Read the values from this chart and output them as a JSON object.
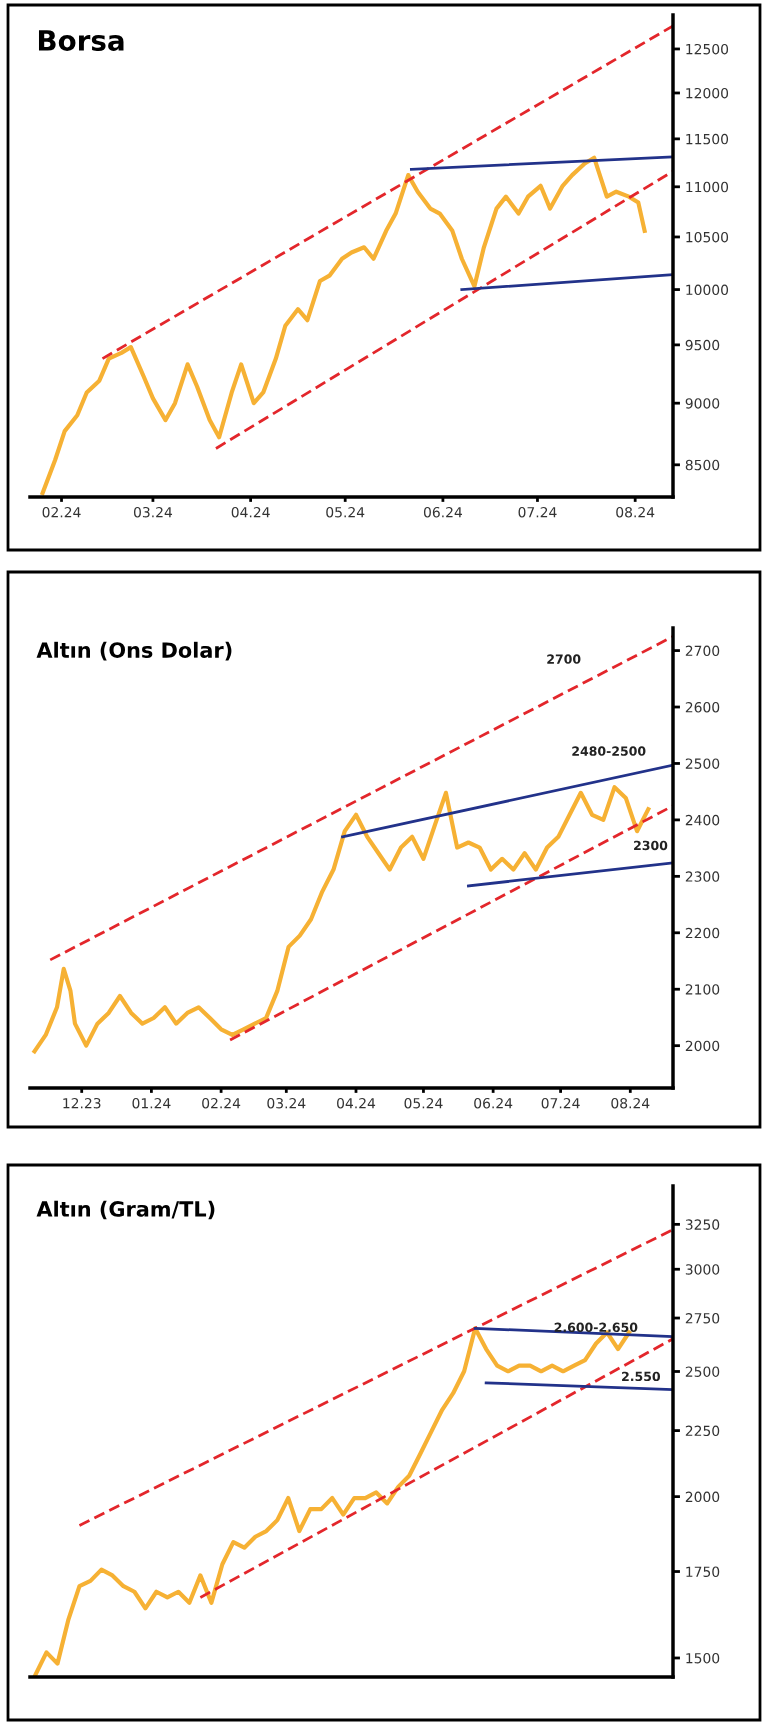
{
  "chart_data": [
    {
      "type": "line",
      "title": "Borsa",
      "log": true,
      "xlim": [
        "2024-01-22",
        "2024-08-13"
      ],
      "ylim": [
        8250,
        12900
      ],
      "xticks": [
        {
          "value": "2024-02-01",
          "label": "02.24"
        },
        {
          "value": "2024-03-01",
          "label": "03.24"
        },
        {
          "value": "2024-04-01",
          "label": "04.24"
        },
        {
          "value": "2024-05-01",
          "label": "05.24"
        },
        {
          "value": "2024-06-01",
          "label": "06.24"
        },
        {
          "value": "2024-07-01",
          "label": "07.24"
        },
        {
          "value": "2024-08-01",
          "label": "08.24"
        }
      ],
      "yticks": [
        8500,
        9000,
        9500,
        10000,
        10500,
        11000,
        11500,
        12000,
        12500
      ],
      "series": [
        {
          "color": "#f6b134",
          "x": [
            "2024-01-26",
            "2024-01-30",
            "2024-02-02",
            "2024-02-06",
            "2024-02-09",
            "2024-02-13",
            "2024-02-16",
            "2024-02-20",
            "2024-02-23",
            "2024-02-27",
            "2024-03-01",
            "2024-03-05",
            "2024-03-08",
            "2024-03-12",
            "2024-03-15",
            "2024-03-19",
            "2024-03-22",
            "2024-03-26",
            "2024-03-29",
            "2024-04-02",
            "2024-04-05",
            "2024-04-09",
            "2024-04-12",
            "2024-04-16",
            "2024-04-19",
            "2024-04-23",
            "2024-04-26",
            "2024-04-30",
            "2024-05-03",
            "2024-05-07",
            "2024-05-10",
            "2024-05-14",
            "2024-05-17",
            "2024-05-21",
            "2024-05-24",
            "2024-05-28",
            "2024-05-31",
            "2024-06-04",
            "2024-06-07",
            "2024-06-11",
            "2024-06-14",
            "2024-06-18",
            "2024-06-21",
            "2024-06-25",
            "2024-06-28",
            "2024-07-02",
            "2024-07-05",
            "2024-07-09",
            "2024-07-12",
            "2024-07-16",
            "2024-07-19",
            "2024-07-23",
            "2024-07-26",
            "2024-07-30",
            "2024-08-02",
            "2024-08-04"
          ],
          "values": [
            8280,
            8540,
            8770,
            8900,
            9090,
            9190,
            9380,
            9430,
            9480,
            9230,
            9040,
            8860,
            9000,
            9330,
            9140,
            8860,
            8720,
            9090,
            9330,
            9000,
            9090,
            9380,
            9670,
            9820,
            9720,
            10080,
            10130,
            10290,
            10350,
            10400,
            10290,
            10560,
            10730,
            11120,
            10950,
            10780,
            10730,
            10560,
            10290,
            10030,
            10400,
            10780,
            10900,
            10730,
            10900,
            11010,
            10780,
            11010,
            11120,
            11240,
            11300,
            10900,
            10950,
            10900,
            10840,
            10560
          ]
        },
        {
          "color": "#e3262b",
          "line_style": "dashed",
          "x": [
            "2024-02-14",
            "2024-08-13"
          ],
          "values": [
            9380,
            12770
          ]
        },
        {
          "color": "#e3262b",
          "line_style": "dashed",
          "x": [
            "2024-03-21",
            "2024-08-13"
          ],
          "values": [
            8630,
            11160
          ]
        },
        {
          "color": "#22328a",
          "line_style": "solid",
          "x": [
            "2024-05-22",
            "2024-08-13"
          ],
          "values": [
            11180,
            11310
          ]
        },
        {
          "color": "#22328a",
          "line_style": "solid",
          "x": [
            "2024-06-07",
            "2024-08-13"
          ],
          "values": [
            10000,
            10140
          ]
        }
      ]
    },
    {
      "type": "line",
      "title": "Altın (Ons Dolar)",
      "xlim": [
        "2023-11-08",
        "2024-08-20"
      ],
      "ylim": [
        1925,
        2740
      ],
      "xticks": [
        {
          "value": "2023-12-01",
          "label": "12.23"
        },
        {
          "value": "2024-01-01",
          "label": "01.24"
        },
        {
          "value": "2024-02-01",
          "label": "02.24"
        },
        {
          "value": "2024-03-01",
          "label": "03.24"
        },
        {
          "value": "2024-04-01",
          "label": "04.24"
        },
        {
          "value": "2024-05-01",
          "label": "05.24"
        },
        {
          "value": "2024-06-01",
          "label": "06.24"
        },
        {
          "value": "2024-07-01",
          "label": "07.24"
        },
        {
          "value": "2024-08-01",
          "label": "08.24"
        }
      ],
      "yticks": [
        2000,
        2100,
        2200,
        2300,
        2400,
        2500,
        2600,
        2700
      ],
      "annotations": [
        "2700",
        "2480-2500",
        "2300"
      ],
      "series": [
        {
          "color": "#f6b134",
          "x": [
            "2023-11-10",
            "2023-11-15",
            "2023-11-20",
            "2023-11-23",
            "2023-11-26",
            "2023-11-28",
            "2023-12-03",
            "2023-12-08",
            "2023-12-13",
            "2023-12-18",
            "2023-12-23",
            "2023-12-28",
            "2024-01-02",
            "2024-01-07",
            "2024-01-12",
            "2024-01-17",
            "2024-01-22",
            "2024-01-27",
            "2024-02-01",
            "2024-02-06",
            "2024-02-11",
            "2024-02-16",
            "2024-02-21",
            "2024-02-26",
            "2024-03-02",
            "2024-03-07",
            "2024-03-12",
            "2024-03-17",
            "2024-03-22",
            "2024-03-27",
            "2024-04-01",
            "2024-04-06",
            "2024-04-11",
            "2024-04-16",
            "2024-04-21",
            "2024-04-26",
            "2024-05-01",
            "2024-05-06",
            "2024-05-11",
            "2024-05-16",
            "2024-05-21",
            "2024-05-26",
            "2024-05-31",
            "2024-06-05",
            "2024-06-10",
            "2024-06-15",
            "2024-06-20",
            "2024-06-25",
            "2024-06-30",
            "2024-07-05",
            "2024-07-10",
            "2024-07-15",
            "2024-07-20",
            "2024-07-25",
            "2024-07-30",
            "2024-08-04",
            "2024-08-09"
          ],
          "values": [
            1990,
            2019,
            2068,
            2136,
            2097,
            2039,
            2000,
            2039,
            2058,
            2088,
            2058,
            2039,
            2049,
            2068,
            2039,
            2058,
            2068,
            2049,
            2029,
            2019,
            2029,
            2039,
            2049,
            2097,
            2175,
            2195,
            2224,
            2273,
            2312,
            2380,
            2409,
            2370,
            2341,
            2312,
            2351,
            2370,
            2331,
            2390,
            2448,
            2351,
            2360,
            2351,
            2312,
            2331,
            2312,
            2341,
            2312,
            2351,
            2370,
            2409,
            2448,
            2409,
            2400,
            2458,
            2439,
            2380,
            2419
          ]
        },
        {
          "color": "#e3262b",
          "line_style": "dashed",
          "x": [
            "2023-11-17",
            "2024-08-20"
          ],
          "values": [
            2152,
            2725
          ]
        },
        {
          "color": "#e3262b",
          "line_style": "dashed",
          "x": [
            "2024-02-05",
            "2024-08-20"
          ],
          "values": [
            2010,
            2425
          ]
        },
        {
          "color": "#22328a",
          "line_style": "solid",
          "x": [
            "2024-03-26",
            "2024-08-20"
          ],
          "values": [
            2370,
            2497
          ]
        },
        {
          "color": "#22328a",
          "line_style": "solid",
          "x": [
            "2024-05-21",
            "2024-08-20"
          ],
          "values": [
            2283,
            2324
          ]
        }
      ]
    },
    {
      "type": "line",
      "title": "Altın (Gram/TL)",
      "log": true,
      "ylim": [
        1450,
        3480
      ],
      "categories": [
        null,
        null,
        null,
        null,
        null,
        null,
        null,
        null,
        null,
        null,
        null,
        null,
        null,
        null,
        null,
        null,
        null,
        null,
        null,
        null,
        null,
        null,
        null,
        null,
        null,
        null,
        null,
        null,
        null,
        null,
        null,
        null,
        null,
        null,
        null,
        null,
        null,
        null,
        null,
        null,
        null,
        null,
        null,
        null,
        null,
        null,
        null,
        null,
        null,
        null,
        null,
        null,
        null,
        null,
        null,
        null,
        null,
        null,
        null
      ],
      "yticks": [
        1500,
        1750,
        2000,
        2250,
        2500,
        2750,
        3000,
        3250
      ],
      "annotations": [
        "2.600-2.650",
        "2.550"
      ],
      "series": [
        {
          "color": "#f6b134",
          "values": [
            1456,
            1515,
            1485,
            1607,
            1705,
            1721,
            1756,
            1738,
            1705,
            1688,
            1639,
            1688,
            1671,
            1688,
            1655,
            1738,
            1655,
            1773,
            1844,
            1826,
            1862,
            1881,
            1918,
            1995,
            1881,
            1956,
            1956,
            1995,
            1937,
            1995,
            1995,
            2015,
            1976,
            2035,
            2076,
            2158,
            2245,
            2335,
            2405,
            2501,
            2700,
            2602,
            2526,
            2501,
            2526,
            2526,
            2501,
            2526,
            2501,
            2526,
            2551,
            2628,
            2680,
            2602,
            2680,
            null,
            null,
            null,
            null
          ]
        },
        {
          "color": "#e3262b",
          "line_style": "dashed",
          "values": [
            null,
            null,
            null,
            null,
            1900,
            null,
            null,
            null,
            null,
            null,
            null,
            null,
            null,
            null,
            null,
            null,
            null,
            null,
            null,
            null,
            null,
            null,
            null,
            null,
            null,
            null,
            null,
            null,
            null,
            null,
            null,
            null,
            null,
            null,
            null,
            null,
            null,
            null,
            null,
            null,
            null,
            null,
            null,
            null,
            null,
            null,
            null,
            null,
            null,
            null,
            null,
            null,
            null,
            null,
            null,
            null,
            null,
            null,
            3220
          ]
        },
        {
          "color": "#e3262b",
          "line_style": "dashed",
          "values": [
            null,
            null,
            null,
            null,
            null,
            null,
            null,
            null,
            null,
            null,
            null,
            null,
            null,
            null,
            null,
            1671,
            null,
            null,
            null,
            null,
            null,
            null,
            null,
            null,
            null,
            null,
            null,
            null,
            null,
            null,
            null,
            null,
            null,
            null,
            null,
            null,
            null,
            null,
            null,
            null,
            null,
            null,
            null,
            null,
            null,
            null,
            null,
            null,
            null,
            null,
            null,
            null,
            null,
            null,
            null,
            null,
            null,
            null,
            2650
          ]
        },
        {
          "color": "#22328a",
          "line_style": "solid",
          "values": [
            null,
            null,
            null,
            null,
            null,
            null,
            null,
            null,
            null,
            null,
            null,
            null,
            null,
            null,
            null,
            null,
            null,
            null,
            null,
            null,
            null,
            null,
            null,
            null,
            null,
            null,
            null,
            null,
            null,
            null,
            null,
            null,
            null,
            null,
            null,
            null,
            null,
            null,
            null,
            null,
            2700,
            null,
            null,
            null,
            null,
            null,
            null,
            null,
            null,
            null,
            null,
            null,
            null,
            null,
            null,
            null,
            null,
            null,
            2660
          ]
        },
        {
          "color": "#22328a",
          "line_style": "solid",
          "values": [
            null,
            null,
            null,
            null,
            null,
            null,
            null,
            null,
            null,
            null,
            null,
            null,
            null,
            null,
            null,
            null,
            null,
            null,
            null,
            null,
            null,
            null,
            null,
            null,
            null,
            null,
            null,
            null,
            null,
            null,
            null,
            null,
            null,
            null,
            null,
            null,
            null,
            null,
            null,
            null,
            null,
            2450,
            null,
            null,
            null,
            null,
            null,
            null,
            null,
            null,
            null,
            null,
            null,
            null,
            null,
            null,
            null,
            null,
            2420
          ]
        }
      ]
    }
  ]
}
